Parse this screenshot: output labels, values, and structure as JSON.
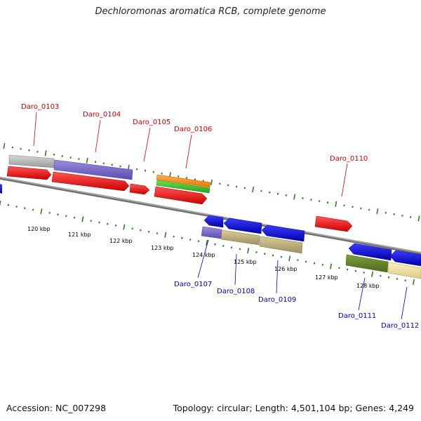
{
  "title": "Dechloromonas aromatica RCB, complete genome",
  "footer": {
    "accession": "Accession: NC_007298",
    "stats": "Topology: circular; Length: 4,501,104 bp; Genes: 4,249"
  },
  "colors": {
    "top_label": "#cc0000",
    "bottom_label": "#0000cc",
    "tick": "#2e7d1e",
    "backbone": "#888888"
  },
  "kbp_labels": [
    "120 kbp",
    "121 kbp",
    "122 kbp",
    "123 kbp",
    "124 kbp",
    "125 kbp",
    "126 kbp",
    "127 kbp",
    "128 kbp"
  ],
  "gene_labels_top": [
    "Daro_0103",
    "Daro_0104",
    "Daro_0105",
    "Daro_0106",
    "Daro_0110"
  ],
  "gene_labels_bottom": [
    "Daro_0107",
    "Daro_0108",
    "Daro_0109",
    "Daro_0111",
    "Daro_0112"
  ]
}
